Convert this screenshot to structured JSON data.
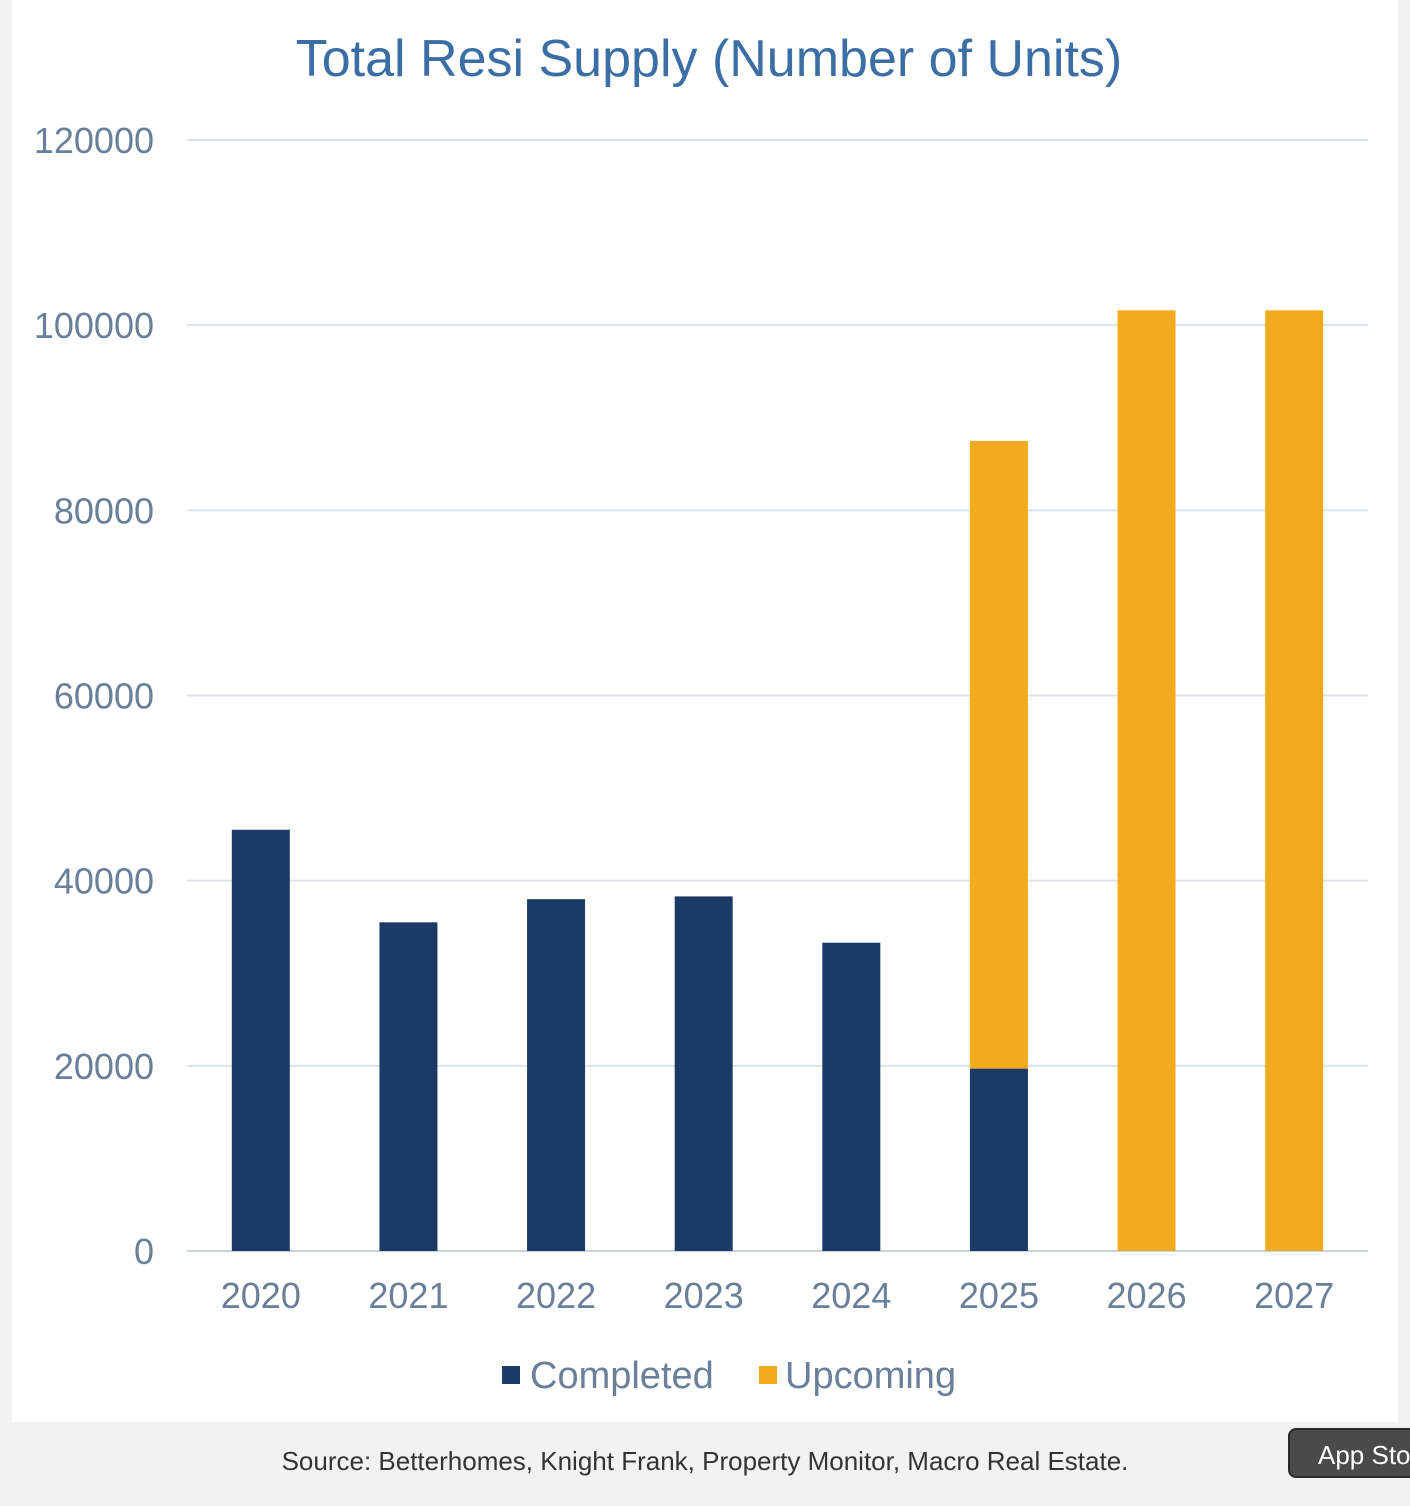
{
  "chart_data": {
    "type": "bar",
    "stacked": true,
    "title": "Total Resi Supply (Number of Units)",
    "categories": [
      "2020",
      "2021",
      "2022",
      "2023",
      "2024",
      "2025",
      "2026",
      "2027"
    ],
    "series": [
      {
        "name": "Completed",
        "color": "#1b3a66",
        "values": [
          45500,
          35500,
          38000,
          38300,
          33300,
          19700,
          0,
          0
        ]
      },
      {
        "name": "Upcoming",
        "color": "#f2ab1d",
        "values": [
          0,
          0,
          0,
          0,
          0,
          67800,
          101600,
          101600
        ]
      }
    ],
    "ylim": [
      0,
      120000
    ],
    "yticks": [
      "0",
      "20000",
      "40000",
      "60000",
      "80000",
      "100000",
      "120000"
    ],
    "grid": true,
    "legend_position": "bottom"
  },
  "source": "Source: Betterhomes, Knight Frank, Property Monitor, Macro Real Estate.",
  "badge": {
    "label": "App Store"
  }
}
